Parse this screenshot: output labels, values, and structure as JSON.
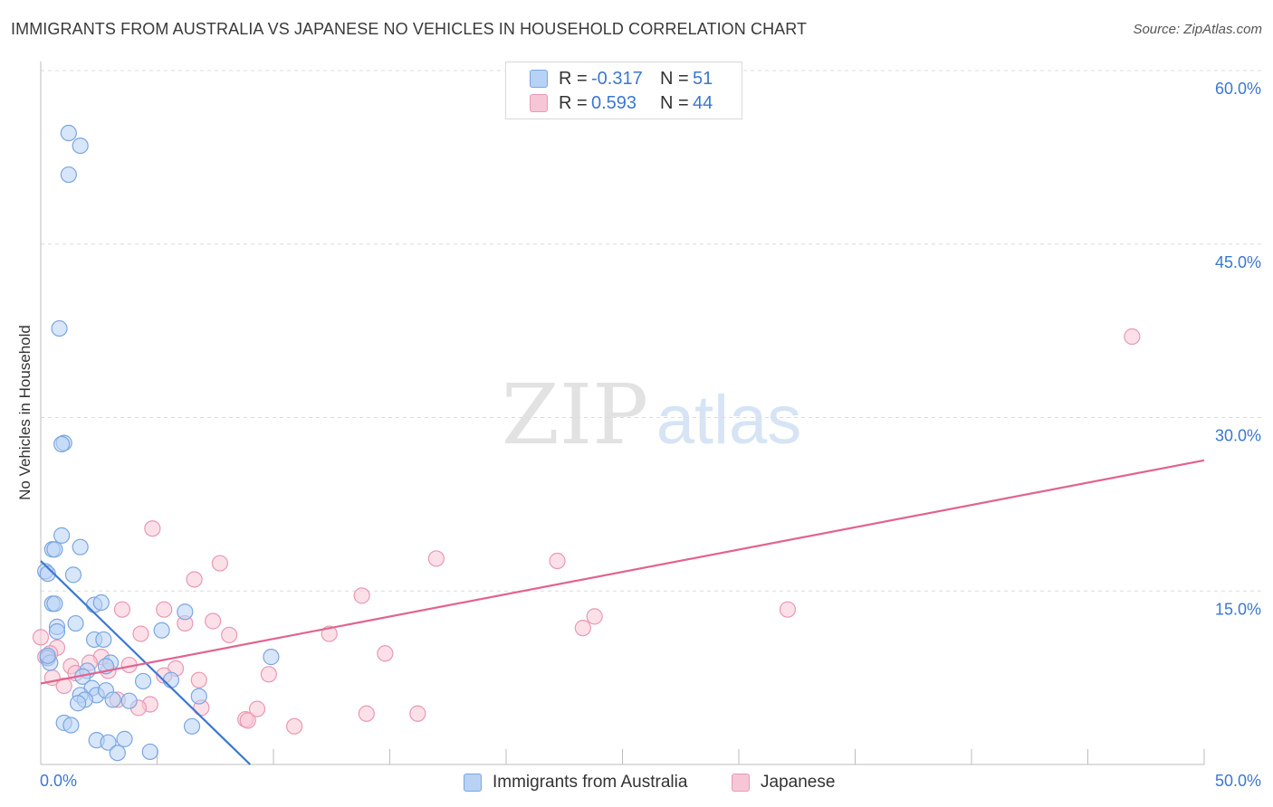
{
  "title": "IMMIGRANTS FROM AUSTRALIA VS JAPANESE NO VEHICLES IN HOUSEHOLD CORRELATION CHART",
  "source": "Source: ZipAtlas.com",
  "watermark": {
    "zip": "ZIP",
    "atlas": "atlas"
  },
  "legend_top": {
    "rows": [
      {
        "r_label": "R =",
        "r_value": "-0.317",
        "n_label": "N =",
        "n_value": "51",
        "swatch_fill": "#b8d2f5",
        "swatch_stroke": "#7aa6e0"
      },
      {
        "r_label": "R =",
        "r_value": "0.593",
        "n_label": "N =",
        "n_value": "44",
        "swatch_fill": "#f7c6d6",
        "swatch_stroke": "#ea98b4"
      }
    ]
  },
  "legend_bottom": [
    {
      "label": "Immigrants from Australia",
      "swatch_fill": "#b8d2f5",
      "swatch_stroke": "#7aa6e0"
    },
    {
      "label": "Japanese",
      "swatch_fill": "#f7c6d6",
      "swatch_stroke": "#ea98b4"
    }
  ],
  "chart_data": {
    "type": "scatter",
    "title": "IMMIGRANTS FROM AUSTRALIA VS JAPANESE NO VEHICLES IN HOUSEHOLD CORRELATION CHART",
    "xlabel": "",
    "ylabel": "No Vehicles in Household",
    "xlim": [
      0,
      50
    ],
    "ylim": [
      0,
      60
    ],
    "x_tick_labels": [
      "0.0%",
      "50.0%"
    ],
    "y_tick_labels": [
      {
        "value": 15,
        "label": "15.0%"
      },
      {
        "value": 30,
        "label": "30.0%"
      },
      {
        "value": 45,
        "label": "45.0%"
      },
      {
        "value": 60,
        "label": "60.0%"
      }
    ],
    "legend_position": "top-center",
    "colors": {
      "australia_fill": "#b8d2f5",
      "australia_stroke": "#7aa6e0",
      "australia_line": "#3a78d1",
      "japanese_fill": "#f7c6d6",
      "japanese_stroke": "#ea98b4",
      "japanese_line": "#e2638f"
    },
    "series": [
      {
        "name": "Immigrants from Australia",
        "trend": {
          "x0": 0.0,
          "y0": 17.6,
          "x1": 9.0,
          "y1": 0.0
        },
        "points": [
          [
            1.2,
            54.6
          ],
          [
            1.7,
            53.5
          ],
          [
            1.2,
            51.0
          ],
          [
            0.8,
            37.7
          ],
          [
            1.0,
            27.8
          ],
          [
            0.9,
            27.7
          ],
          [
            0.9,
            19.8
          ],
          [
            0.5,
            18.6
          ],
          [
            0.6,
            18.6
          ],
          [
            1.7,
            18.8
          ],
          [
            0.2,
            16.7
          ],
          [
            0.3,
            16.5
          ],
          [
            1.4,
            16.4
          ],
          [
            0.5,
            13.9
          ],
          [
            0.6,
            13.9
          ],
          [
            2.3,
            13.8
          ],
          [
            2.6,
            14.0
          ],
          [
            6.2,
            13.2
          ],
          [
            0.7,
            11.9
          ],
          [
            0.7,
            11.5
          ],
          [
            1.5,
            12.2
          ],
          [
            5.2,
            11.6
          ],
          [
            2.3,
            10.8
          ],
          [
            2.7,
            10.8
          ],
          [
            0.3,
            9.2
          ],
          [
            0.4,
            8.8
          ],
          [
            2.0,
            8.1
          ],
          [
            3.0,
            8.8
          ],
          [
            1.8,
            7.6
          ],
          [
            2.2,
            6.6
          ],
          [
            4.4,
            7.2
          ],
          [
            5.6,
            7.3
          ],
          [
            9.9,
            9.3
          ],
          [
            1.7,
            6.0
          ],
          [
            2.4,
            6.0
          ],
          [
            2.8,
            6.4
          ],
          [
            1.9,
            5.6
          ],
          [
            3.1,
            5.6
          ],
          [
            3.8,
            5.5
          ],
          [
            1.6,
            5.3
          ],
          [
            6.8,
            5.9
          ],
          [
            1.0,
            3.6
          ],
          [
            1.3,
            3.4
          ],
          [
            6.5,
            3.3
          ],
          [
            2.4,
            2.1
          ],
          [
            2.9,
            1.9
          ],
          [
            3.6,
            2.2
          ],
          [
            3.3,
            1.0
          ],
          [
            4.7,
            1.1
          ],
          [
            0.3,
            9.4
          ],
          [
            2.8,
            8.5
          ]
        ]
      },
      {
        "name": "Japanese",
        "trend": {
          "x0": 0.0,
          "y0": 7.0,
          "x1": 50.0,
          "y1": 26.3
        },
        "points": [
          [
            46.9,
            37.0
          ],
          [
            4.8,
            20.4
          ],
          [
            17.0,
            17.8
          ],
          [
            22.2,
            17.6
          ],
          [
            7.7,
            17.4
          ],
          [
            6.6,
            16.0
          ],
          [
            13.8,
            14.6
          ],
          [
            3.5,
            13.4
          ],
          [
            5.3,
            13.4
          ],
          [
            32.1,
            13.4
          ],
          [
            23.8,
            12.8
          ],
          [
            7.4,
            12.4
          ],
          [
            6.2,
            12.2
          ],
          [
            23.3,
            11.8
          ],
          [
            4.3,
            11.3
          ],
          [
            8.1,
            11.2
          ],
          [
            12.4,
            11.3
          ],
          [
            0.0,
            11.0
          ],
          [
            0.7,
            10.1
          ],
          [
            14.8,
            9.6
          ],
          [
            2.6,
            9.3
          ],
          [
            2.1,
            8.8
          ],
          [
            3.8,
            8.6
          ],
          [
            1.3,
            8.5
          ],
          [
            2.9,
            8.1
          ],
          [
            5.8,
            8.3
          ],
          [
            1.5,
            7.9
          ],
          [
            5.3,
            7.7
          ],
          [
            9.8,
            7.8
          ],
          [
            6.8,
            7.3
          ],
          [
            0.5,
            7.5
          ],
          [
            1.0,
            6.8
          ],
          [
            0.4,
            9.6
          ],
          [
            3.3,
            5.6
          ],
          [
            4.7,
            5.2
          ],
          [
            4.2,
            4.9
          ],
          [
            6.9,
            4.9
          ],
          [
            9.3,
            4.8
          ],
          [
            8.8,
            3.9
          ],
          [
            8.9,
            3.8
          ],
          [
            14.0,
            4.4
          ],
          [
            16.2,
            4.4
          ],
          [
            10.9,
            3.3
          ],
          [
            0.2,
            9.3
          ]
        ]
      }
    ]
  }
}
